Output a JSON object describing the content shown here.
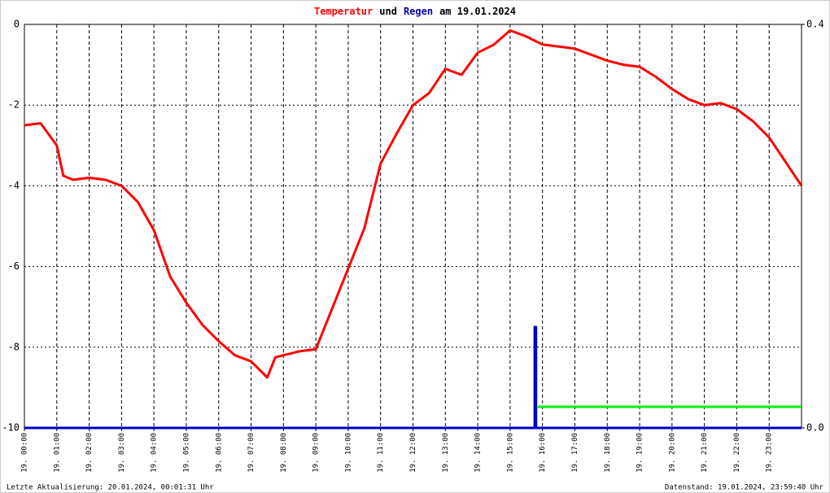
{
  "chart_data": {
    "type": "line",
    "title_parts": [
      {
        "text": "Temperatur",
        "color": "#ff0000"
      },
      {
        "text": "und",
        "color": "#000000"
      },
      {
        "text": "Regen",
        "color": "#0000aa"
      },
      {
        "text": "am 19.01.2024",
        "color": "#000000"
      }
    ],
    "footer_left": "Letzte Aktualisierung: 20.01.2024, 00:01:31 Uhr",
    "footer_right": "Datenstand: 19.01.2024, 23:59:40 Uhr",
    "xlim": [
      0,
      24
    ],
    "xticks": [
      {
        "value": 0,
        "label": "19. 00:00"
      },
      {
        "value": 1,
        "label": "19. 01:00"
      },
      {
        "value": 2,
        "label": "19. 02:00"
      },
      {
        "value": 3,
        "label": "19. 03:00"
      },
      {
        "value": 4,
        "label": "19. 04:00"
      },
      {
        "value": 5,
        "label": "19. 05:00"
      },
      {
        "value": 6,
        "label": "19. 06:00"
      },
      {
        "value": 7,
        "label": "19. 07:00"
      },
      {
        "value": 8,
        "label": "19. 08:00"
      },
      {
        "value": 9,
        "label": "19. 09:00"
      },
      {
        "value": 10,
        "label": "19. 10:00"
      },
      {
        "value": 11,
        "label": "19. 11:00"
      },
      {
        "value": 12,
        "label": "19. 12:00"
      },
      {
        "value": 13,
        "label": "19. 13:00"
      },
      {
        "value": 14,
        "label": "19. 14:00"
      },
      {
        "value": 15,
        "label": "19. 15:00"
      },
      {
        "value": 16,
        "label": "19. 16:00"
      },
      {
        "value": 17,
        "label": "19. 17:00"
      },
      {
        "value": 18,
        "label": "19. 18:00"
      },
      {
        "value": 19,
        "label": "19. 19:00"
      },
      {
        "value": 20,
        "label": "19. 20:00"
      },
      {
        "value": 21,
        "label": "19. 21:00"
      },
      {
        "value": 22,
        "label": "19. 22:00"
      },
      {
        "value": 23,
        "label": "19. 23:00"
      }
    ],
    "ylim": [
      -10,
      0
    ],
    "yticks": [
      0,
      -2,
      -4,
      -6,
      -8,
      -10
    ],
    "y2lim": [
      0,
      0.4
    ],
    "y2ticks": [
      0.4,
      {
        "value": 0,
        "label": "0.0"
      }
    ],
    "grid": true,
    "series": [
      {
        "name": "Temperatur",
        "color": "#ff0000",
        "axis": "y",
        "x": [
          0,
          0.5,
          1,
          1.2,
          1.5,
          2,
          2.5,
          3,
          3.5,
          4,
          4.5,
          5,
          5.5,
          6,
          6.5,
          7,
          7.5,
          7.75,
          8,
          8.5,
          9,
          9.5,
          10,
          10.5,
          11,
          11.5,
          12,
          12.5,
          13,
          13.5,
          14,
          14.5,
          15,
          15.5,
          16,
          16.5,
          17,
          17.5,
          18,
          18.5,
          19,
          19.5,
          20,
          20.5,
          21,
          21.5,
          22,
          22.5,
          23,
          23.5,
          24
        ],
        "values": [
          -2.5,
          -2.45,
          -3.0,
          -3.75,
          -3.85,
          -3.8,
          -3.85,
          -4.0,
          -4.4,
          -5.1,
          -6.25,
          -6.9,
          -7.45,
          -7.85,
          -8.2,
          -8.35,
          -8.75,
          -8.25,
          -8.2,
          -8.1,
          -8.05,
          -7.05,
          -6.05,
          -5.05,
          -3.45,
          -2.7,
          -2.0,
          -1.7,
          -1.1,
          -1.25,
          -0.7,
          -0.5,
          -0.15,
          -0.3,
          -0.5,
          -0.55,
          -0.6,
          -0.75,
          -0.9,
          -1.0,
          -1.05,
          -1.3,
          -1.6,
          -1.85,
          -2.0,
          -1.95,
          -2.1,
          -2.4,
          -2.8,
          -3.4,
          -4.0
        ]
      },
      {
        "name": "Regen",
        "color": "#0000cc",
        "axis": "y2",
        "x": [
          0,
          15.76,
          15.76,
          15.8,
          15.8,
          24
        ],
        "values": [
          0,
          0,
          0.1,
          0.1,
          0,
          0
        ]
      },
      {
        "color": "#00ee00",
        "axis": "y2",
        "x": [
          15.85,
          24
        ],
        "values": [
          0.021,
          0.021
        ]
      }
    ]
  }
}
